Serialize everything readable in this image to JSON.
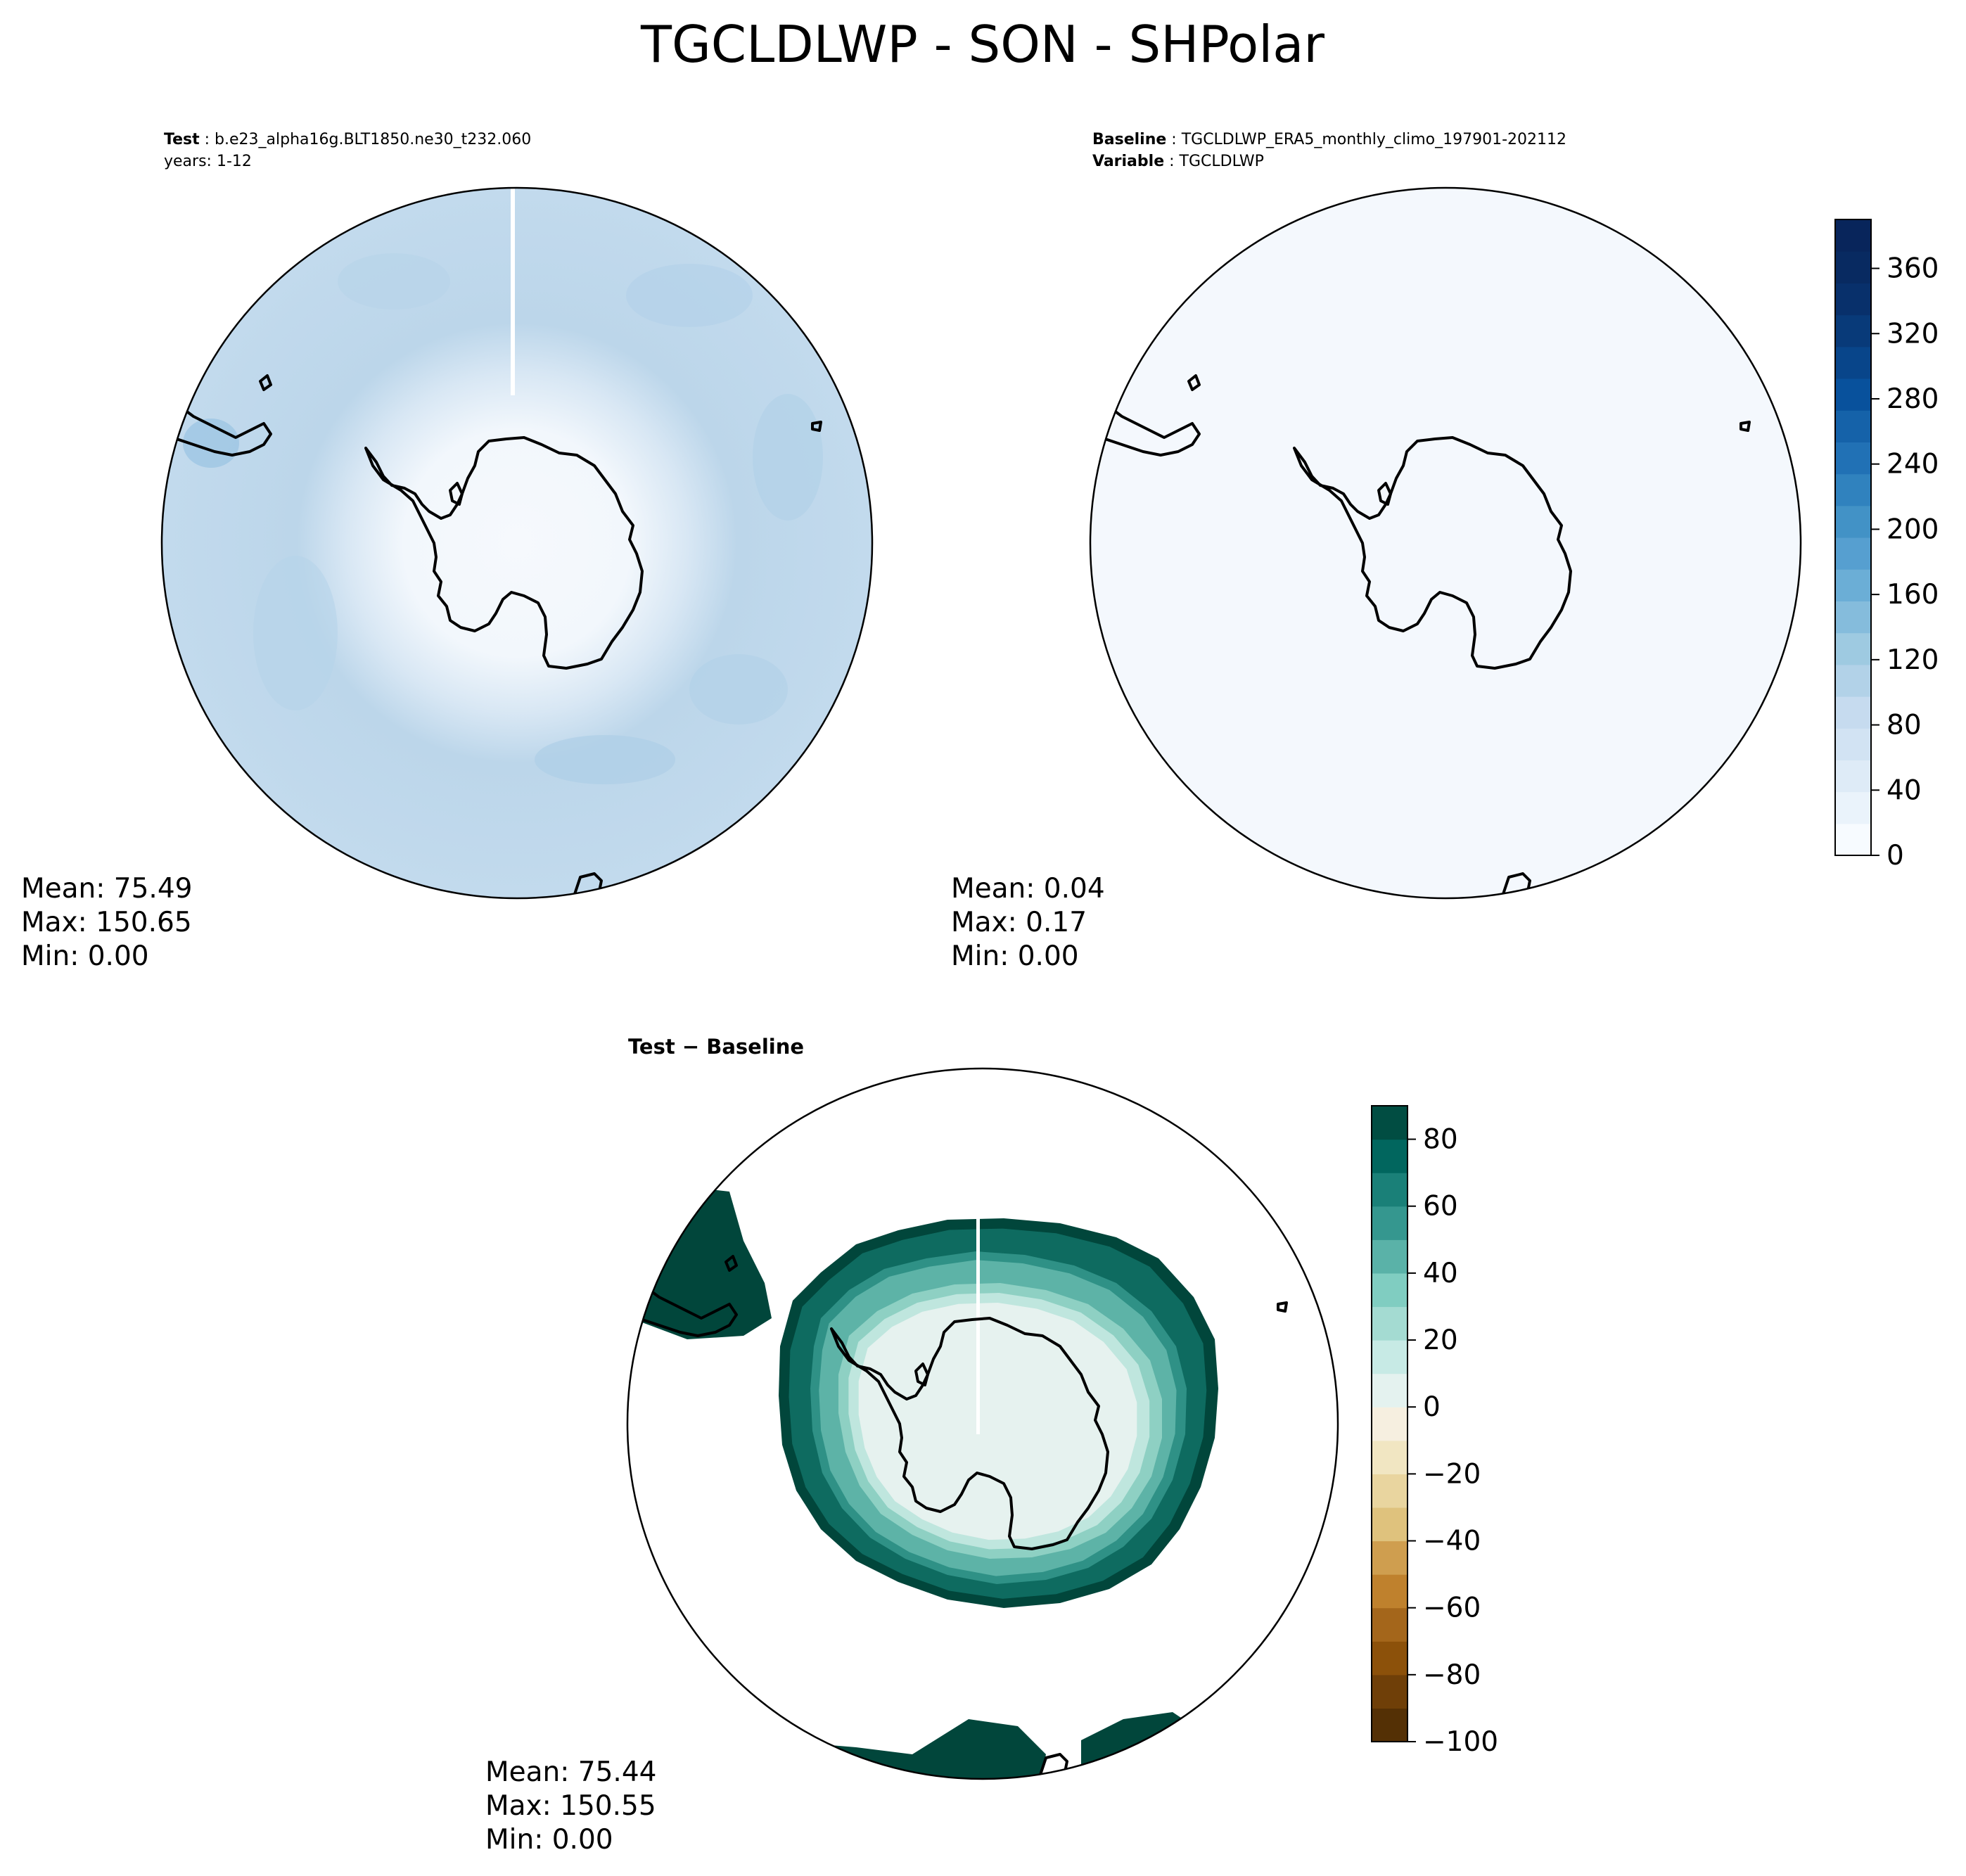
{
  "figure": {
    "title": "TGCLDLWP - SON - SHPolar"
  },
  "panels": {
    "test": {
      "label_key": "Test",
      "label_value": "b.e23_alpha16g.BLT1850.ne30_t232.060",
      "subline": "years: 1-12",
      "stats": {
        "mean": "Mean: 75.49",
        "max": "Max: 150.65",
        "min": "Min:  0.00"
      },
      "fill_color": "#bfd8ec"
    },
    "baseline": {
      "label_key": "Baseline",
      "label_value": "TGCLDLWP_ERA5_monthly_climo_197901-202112",
      "var_key": "Variable",
      "var_value": "TGCLDLWP",
      "stats": {
        "mean": "Mean:  0.04",
        "max": "Max:  0.17",
        "min": "Min:  0.00"
      },
      "fill_color": "#f4f8fd"
    },
    "difference": {
      "title": "Test − Baseline",
      "stats": {
        "mean": "Mean: 75.44",
        "max": "Max: 150.55",
        "min": "Min:  0.00"
      },
      "ring_colors": [
        "#01463b",
        "#0e6b60",
        "#2f9186",
        "#5db3a7",
        "#8ed0c3",
        "#bfe6de",
        "#e6f2ef"
      ]
    }
  },
  "chart_data": [
    {
      "type": "heatmap",
      "name": "colorbar-test-baseline",
      "colormap": "Blues",
      "vmin": 0,
      "vmax": 390,
      "ticks": [
        0,
        40,
        80,
        120,
        160,
        200,
        240,
        280,
        320,
        360
      ],
      "tick_labels": [
        "0",
        "40",
        "80",
        "120",
        "160",
        "200",
        "240",
        "280",
        "320",
        "360"
      ],
      "colors": [
        "#f7fbff",
        "#eaf3fb",
        "#deebf7",
        "#d2e3f3",
        "#c6dbef",
        "#b2d2e8",
        "#9ecae1",
        "#85bcdc",
        "#6baed6",
        "#569fd0",
        "#4292c6",
        "#3082be",
        "#2171b5",
        "#1562a9",
        "#08519c",
        "#08458a",
        "#083a79",
        "#08306b",
        "#082a61",
        "#08255b"
      ]
    },
    {
      "type": "heatmap",
      "name": "colorbar-difference",
      "colormap": "BrBG",
      "vmin": -100,
      "vmax": 90,
      "ticks": [
        -100,
        -80,
        -60,
        -40,
        -20,
        0,
        20,
        40,
        60,
        80
      ],
      "tick_labels": [
        "−100",
        "−80",
        "−60",
        "−40",
        "−20",
        "0",
        "20",
        "40",
        "60",
        "80"
      ],
      "colors": [
        "#543005",
        "#6f3f08",
        "#8c510a",
        "#a4661b",
        "#bf812d",
        "#cf9e4f",
        "#dfc27d",
        "#e9d59f",
        "#f1e6c2",
        "#f6efe0",
        "#e4f2ef",
        "#c7eae5",
        "#a4dbd2",
        "#80cdc1",
        "#5ab2a8",
        "#35978f",
        "#1a8078",
        "#01665e",
        "#014d42"
      ]
    }
  ]
}
